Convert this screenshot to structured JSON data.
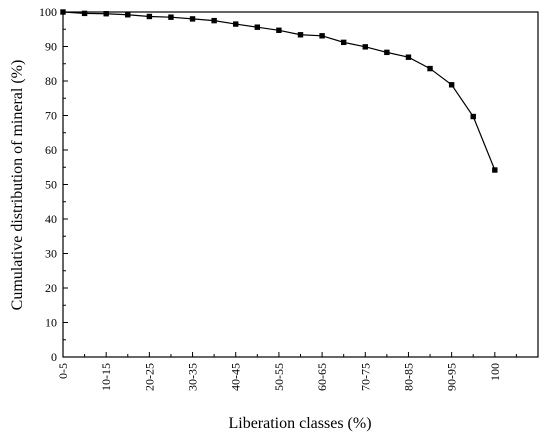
{
  "chart_data": {
    "type": "line",
    "xlabel": "Liberation classes (%)",
    "ylabel": "Cumulative distribution of mineral (%)",
    "ylim": [
      0,
      100
    ],
    "yticks": [
      0,
      10,
      20,
      30,
      40,
      50,
      60,
      70,
      80,
      90,
      100
    ],
    "xlim": [
      0,
      22
    ],
    "categories": [
      "0-5",
      "10-15",
      "20-25",
      "30-35",
      "40-45",
      "50-55",
      "60-65",
      "70-75",
      "80-85",
      "90-95",
      "100"
    ],
    "category_positions": [
      0,
      2,
      4,
      6,
      8,
      10,
      12,
      14,
      16,
      18,
      20
    ],
    "grid": false,
    "legend": "none",
    "marker": "square",
    "series": [
      {
        "x": [
          0,
          1,
          2,
          3,
          4,
          5,
          6,
          7,
          8,
          9,
          10,
          11,
          12,
          13,
          14,
          15,
          16,
          17,
          18,
          19,
          20
        ],
        "values": [
          100,
          99.6,
          99.5,
          99.2,
          98.7,
          98.5,
          98.0,
          97.5,
          96.5,
          95.6,
          94.7,
          93.4,
          93.1,
          91.2,
          89.9,
          88.3,
          86.9,
          83.6,
          78.9,
          69.7,
          54.2
        ]
      }
    ]
  }
}
